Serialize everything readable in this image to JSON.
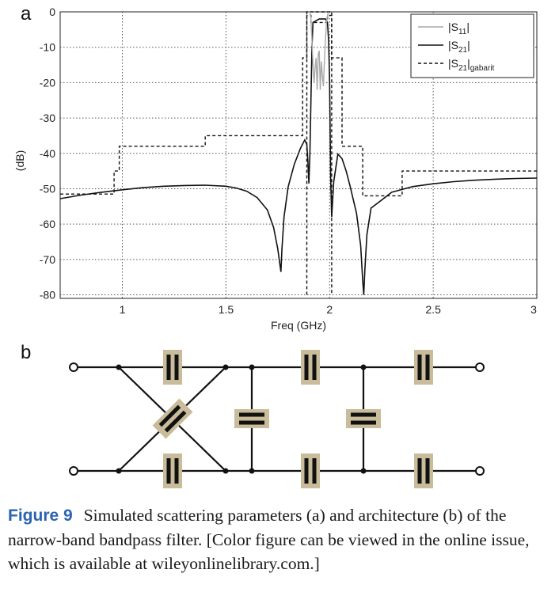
{
  "panel_a_label": "a",
  "panel_b_label": "b",
  "chart_data": {
    "type": "line",
    "xlabel": "Freq (GHz)",
    "ylabel": "(dB)",
    "xlim": [
      0.7,
      3.0
    ],
    "ylim": [
      -81,
      0
    ],
    "xticks": [
      1,
      1.5,
      2,
      2.5,
      3
    ],
    "yticks": [
      0,
      -10,
      -20,
      -30,
      -40,
      -50,
      -60,
      -70,
      -80
    ],
    "grid": true,
    "legend_position": "top-right",
    "legend": [
      {
        "key": "s11",
        "text": "|S",
        "sub": "11",
        "end": "|",
        "color": "#a8a8a8",
        "style": "solid"
      },
      {
        "key": "s21",
        "text": "|S",
        "sub": "21",
        "end": "|",
        "color": "#111111",
        "style": "solid"
      },
      {
        "key": "gab",
        "text": "|S",
        "sub": "21",
        "end": "|",
        "sub2": "gabarit",
        "color": "#111111",
        "style": "dashed"
      }
    ],
    "series": [
      {
        "name": "|S11|",
        "color": "#a8a8a8",
        "x": [
          1.905,
          1.91,
          1.915,
          1.92,
          1.925,
          1.93,
          1.935,
          1.94,
          1.945,
          1.95,
          1.955,
          1.96,
          1.965,
          1.97,
          1.975,
          1.98,
          1.985,
          1.99,
          1.995
        ],
        "y": [
          0,
          -2,
          -8,
          -15,
          -20,
          -16,
          -13,
          -22,
          -12,
          -11,
          -22,
          -14,
          -18,
          -21,
          -14,
          -8,
          -3,
          -1,
          0
        ]
      },
      {
        "name": "|S21|",
        "color": "#111111",
        "x": [
          0.7,
          0.8,
          0.9,
          1.0,
          1.1,
          1.2,
          1.3,
          1.4,
          1.5,
          1.55,
          1.6,
          1.65,
          1.7,
          1.73,
          1.75,
          1.765,
          1.77,
          1.78,
          1.8,
          1.83,
          1.86,
          1.88,
          1.89,
          1.895,
          1.9,
          1.905,
          1.91,
          1.915,
          1.92,
          1.95,
          1.98,
          1.99,
          1.995,
          2.0,
          2.005,
          2.01,
          2.02,
          2.04,
          2.06,
          2.08,
          2.1,
          2.13,
          2.15,
          2.16,
          2.165,
          2.17,
          2.18,
          2.2,
          2.3,
          2.4,
          2.5,
          2.6,
          2.7,
          2.8,
          2.9,
          3.0
        ],
        "y": [
          -52.8,
          -51.8,
          -51,
          -50.3,
          -49.7,
          -49.3,
          -49.1,
          -49,
          -49.3,
          -49.8,
          -50.7,
          -52.5,
          -56,
          -61,
          -67,
          -73.5,
          -67,
          -58,
          -49.5,
          -43,
          -38.5,
          -36.2,
          -37.5,
          -42,
          -48.5,
          -40,
          -25,
          -10,
          -3,
          -2,
          -2,
          -3,
          -8,
          -20,
          -47,
          -58,
          -48,
          -40.2,
          -41.5,
          -45,
          -49.5,
          -57,
          -66,
          -76,
          -80,
          -73,
          -63,
          -55.5,
          -51,
          -49.4,
          -48.6,
          -48,
          -47.6,
          -47.3,
          -47.1,
          -47
        ]
      },
      {
        "name": "|S21|gabarit",
        "color": "#111111",
        "x": [
          0.7,
          0.96,
          0.96,
          0.985,
          0.985,
          1.4,
          1.4,
          1.87,
          1.87,
          1.89,
          1.89,
          1.91,
          1.91,
          1.99,
          1.99,
          2.01,
          2.01,
          2.06,
          2.06,
          2.16,
          2.16,
          2.35,
          2.35,
          3.0
        ],
        "y": [
          -51.5,
          -51.5,
          -45,
          -45,
          -38,
          -38,
          -35,
          -35,
          -13,
          -13,
          0,
          0,
          0,
          0,
          0,
          0,
          -13,
          -13,
          -38,
          -38,
          -52,
          -52,
          -45,
          -45
        ]
      },
      {
        "name": "gabarit-inner",
        "color": "#111111",
        "x": [
          1.89,
          1.89,
          1.91,
          1.91,
          1.99,
          1.99,
          2.01,
          2.01
        ],
        "y": [
          -80,
          -1,
          -1,
          -3,
          -3,
          -1,
          -1,
          -80
        ]
      }
    ]
  },
  "circuit": {
    "resonator_color": "#c9bc9b"
  },
  "caption": {
    "figure_label": "Figure 9",
    "text": "Simulated scattering parameters (a) and architecture (b) of the narrow-band bandpass filter. [Color figure can be viewed in the online issue, which is available at wileyonlinelibrary.com.]"
  }
}
